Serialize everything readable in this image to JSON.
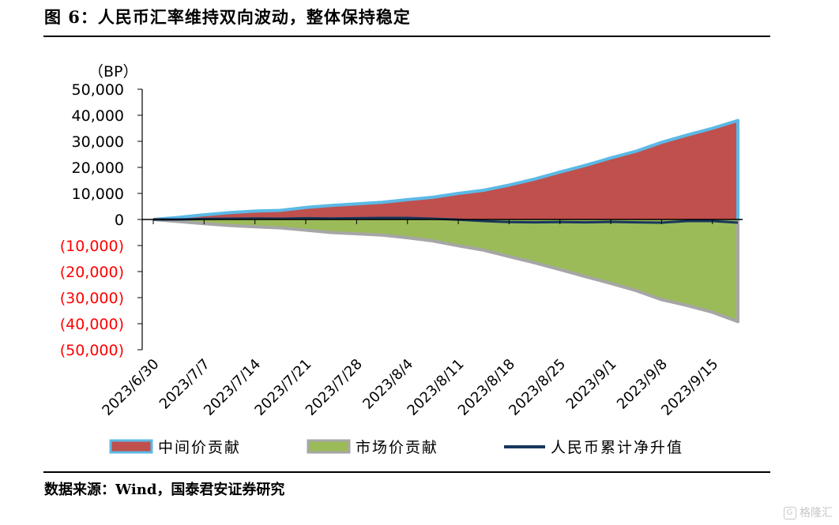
{
  "header": {
    "title": "图 6：人民币汇率维持双向波动，整体保持稳定"
  },
  "footer": {
    "source": "数据来源：Wind，国泰君安证券研究"
  },
  "watermark": {
    "icon": "G",
    "text": "格隆汇"
  },
  "colors": {
    "mid": "#C0504D",
    "mid_edge": "#5BB9E6",
    "market": "#9BBB59",
    "market_edge": "#A6A6A6",
    "rmb": "#17375E",
    "negative_label": "#FF0000"
  },
  "chart_data": {
    "type": "area",
    "unit_label": "（BP）",
    "ylim": [
      -50000,
      50000
    ],
    "yticks": [
      50000,
      40000,
      30000,
      20000,
      10000,
      0,
      -10000,
      -20000,
      -30000,
      -40000,
      -50000
    ],
    "ytick_labels": [
      "50,000",
      "40,000",
      "30,000",
      "20,000",
      "10,000",
      "0",
      "(10,000)",
      "(20,000)",
      "(30,000)",
      "(40,000)",
      "(50,000)"
    ],
    "xtick_labels": [
      "2023/6/30",
      "2023/7/7",
      "2023/7/14",
      "2023/7/21",
      "2023/7/28",
      "2023/8/4",
      "2023/8/11",
      "2023/8/18",
      "2023/8/25",
      "2023/9/1",
      "2023/9/8",
      "2023/9/15"
    ],
    "x": [
      "2023/6/30",
      "2023/7/3",
      "2023/7/7",
      "2023/7/10",
      "2023/7/14",
      "2023/7/17",
      "2023/7/21",
      "2023/7/24",
      "2023/7/28",
      "2023/7/31",
      "2023/8/4",
      "2023/8/7",
      "2023/8/11",
      "2023/8/14",
      "2023/8/18",
      "2023/8/21",
      "2023/8/25",
      "2023/8/28",
      "2023/9/1",
      "2023/9/4",
      "2023/9/8",
      "2023/9/11",
      "2023/9/15",
      "2023/9/19"
    ],
    "series": [
      {
        "name": "中间价贡献",
        "values": [
          0,
          800,
          1800,
          2600,
          3200,
          3500,
          4600,
          5400,
          6000,
          6600,
          7600,
          8500,
          10000,
          11200,
          13200,
          15500,
          18200,
          20800,
          23600,
          26200,
          29600,
          32400,
          35000,
          38000
        ]
      },
      {
        "name": "市场价贡献",
        "values": [
          0,
          -800,
          -1600,
          -2300,
          -2800,
          -3200,
          -4100,
          -5000,
          -5500,
          -6000,
          -7000,
          -8200,
          -10100,
          -11800,
          -14200,
          -16600,
          -19200,
          -21900,
          -24500,
          -27300,
          -30800,
          -33000,
          -35600,
          -39200
        ]
      },
      {
        "name": "人民币累计净升值",
        "values": [
          0,
          0,
          200,
          300,
          400,
          300,
          500,
          400,
          500,
          600,
          600,
          300,
          -100,
          -600,
          -1000,
          -1100,
          -1000,
          -1100,
          -900,
          -1100,
          -1200,
          -600,
          -600,
          -1200
        ]
      }
    ]
  }
}
